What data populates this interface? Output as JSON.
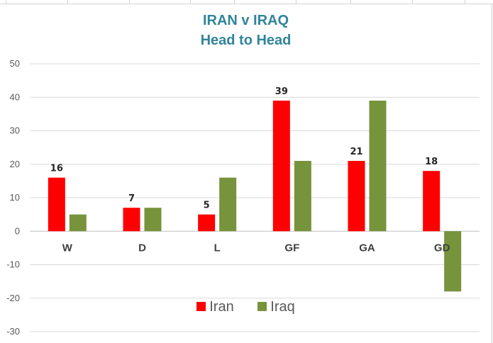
{
  "colors": {
    "title": "#31849b",
    "grid": "#d9d9d9",
    "axis": "#bfbfbf"
  },
  "chart_data": {
    "type": "bar",
    "title": "IRAN v IRAQ",
    "subtitle": "Head to Head",
    "categories": [
      "W",
      "D",
      "L",
      "GF",
      "GA",
      "GD"
    ],
    "series": [
      {
        "name": "Iran",
        "color": "#ff0000",
        "values": [
          16,
          7,
          5,
          39,
          21,
          18
        ],
        "data_labels": true
      },
      {
        "name": "Iraq",
        "color": "#77933c",
        "values": [
          5,
          7,
          16,
          21,
          39,
          -18
        ],
        "data_labels": false
      }
    ],
    "ylim": [
      -30,
      50
    ],
    "yticks": [
      50,
      40,
      30,
      20,
      10,
      0,
      -10,
      -20,
      -30
    ],
    "xlabel": "",
    "ylabel": "",
    "grid": true,
    "legend_position": "bottom"
  }
}
